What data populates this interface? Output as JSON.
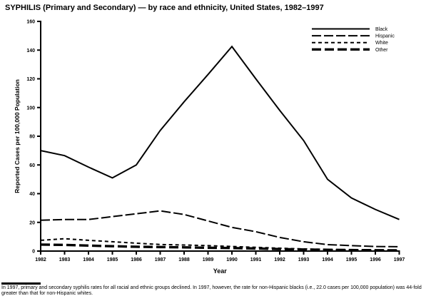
{
  "page": {
    "title": "SYPHILIS (Primary and Secondary) — by race and ethnicity, United States, 1982–1997",
    "footnote": "In 1997, primary and secondary syphilis rates for all racial and ethnic groups declined. In 1997, however, the rate for non-Hispanic blacks (i.e., 22.0 cases per 100,000 population) was 44-fold greater than that for non-Hispanic whites."
  },
  "chart_data": {
    "type": "line",
    "title": "SYPHILIS (Primary and Secondary) — by race and ethnicity, United States, 1982–1997",
    "xlabel": "Year",
    "ylabel": "Reported Cases per 100,000 Population",
    "ylim": [
      0,
      160
    ],
    "ytick_step": 20,
    "grid": false,
    "legend_position": "top-right",
    "x_labels": [
      "1982",
      "1983",
      "1984",
      "1985",
      "1986",
      "1987",
      "1988",
      "1989",
      "1990",
      "1991",
      "1992",
      "1993",
      "1994",
      "1995",
      "1996",
      "1997"
    ],
    "series": [
      {
        "name": "Black",
        "style": "solid",
        "values": [
          70,
          66.5,
          58.5,
          51,
          60,
          84,
          104,
          123,
          142.5,
          120,
          98,
          77,
          50,
          37,
          29,
          22
        ]
      },
      {
        "name": "Hispanic",
        "style": "long-dash",
        "values": [
          21.5,
          22,
          22,
          24,
          26,
          28,
          25.5,
          21,
          16.5,
          13.5,
          9.5,
          6.5,
          4.5,
          3.8,
          3.2,
          3
        ]
      },
      {
        "name": "White",
        "style": "short-dash",
        "values": [
          7.5,
          8.6,
          7.5,
          6.5,
          5.5,
          4.6,
          4.2,
          3.8,
          3.2,
          2.6,
          2,
          1.5,
          1.1,
          0.8,
          0.6,
          0.5
        ]
      },
      {
        "name": "Other",
        "style": "thick-dash",
        "values": [
          4.5,
          4.3,
          3.8,
          3.4,
          3,
          2.8,
          2.6,
          2.3,
          2.1,
          1.8,
          1.4,
          1.1,
          0.9,
          0.7,
          0.6,
          0.5
        ]
      }
    ],
    "line_color": "#000000"
  }
}
